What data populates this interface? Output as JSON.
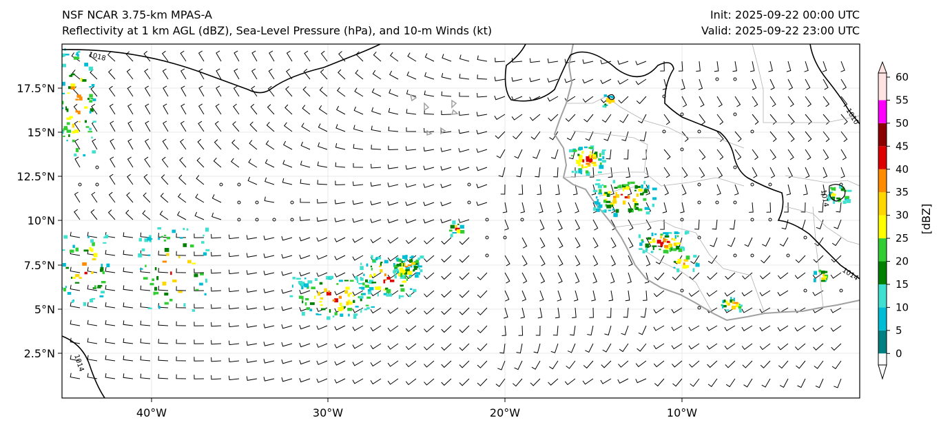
{
  "header": {
    "model_title": "NSF NCAR 3.75-km MPAS-A",
    "fields_title": "Reflectivity at 1 km AGL (dBZ), Sea-Level Pressure (hPa), and 10-m Winds (kt)",
    "init_text": "Init: 2025-09-22 00:00 UTC",
    "valid_text": "Valid: 2025-09-22 23:00 UTC"
  },
  "map": {
    "lon_ticks": [
      "40°W",
      "30°W",
      "20°W",
      "10°W"
    ],
    "lat_ticks": [
      "17.5°N",
      "15°N",
      "12.5°N",
      "10°N",
      "7.5°N",
      "5°N",
      "2.5°N"
    ],
    "isobar_labels": [
      "1018",
      "1010",
      "1014",
      "1014",
      "1014"
    ]
  },
  "colorbar": {
    "label": "[dBZ]",
    "ticks": [
      "0",
      "5",
      "10",
      "15",
      "20",
      "25",
      "30",
      "35",
      "40",
      "45",
      "50",
      "55",
      "60"
    ],
    "colors": [
      "#008080",
      "#00bcd4",
      "#40e0d0",
      "#008000",
      "#32cd32",
      "#ffff00",
      "#ffd700",
      "#ff8c00",
      "#dd0000",
      "#8b0000",
      "#ff00ff",
      "#ffe4e1"
    ]
  }
}
